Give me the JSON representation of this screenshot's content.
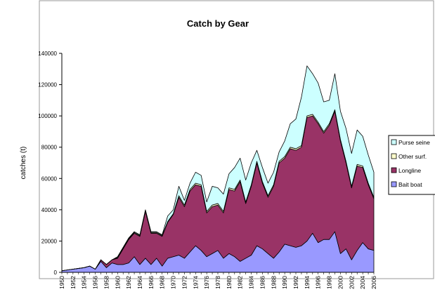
{
  "chart_data": {
    "type": "stacked_area",
    "title": "Catch by Gear",
    "y_label": "catches (t)",
    "categories": [
      "1950",
      null,
      "1952",
      null,
      "1954",
      null,
      "1956",
      null,
      "1958",
      null,
      "1960",
      null,
      "1962",
      null,
      "1964",
      null,
      "1966",
      null,
      "1968",
      null,
      "1970",
      null,
      "1972",
      null,
      "1974",
      null,
      "1976",
      null,
      "1978",
      null,
      "1980",
      null,
      "1982",
      null,
      "1984",
      null,
      "1986",
      null,
      "1988",
      null,
      "1990",
      null,
      "1992",
      null,
      "1994",
      null,
      "1996",
      null,
      "1998",
      null,
      "2000",
      null,
      "2002",
      null,
      "2004",
      null,
      "2006"
    ],
    "series": [
      {
        "name": "Bait boat",
        "color": "#9999ff",
        "values": [
          1000,
          1500,
          2000,
          2500,
          3000,
          4000,
          2000,
          7000,
          3000,
          6000,
          5000,
          5000,
          6000,
          10000,
          5000,
          9000,
          5000,
          9000,
          4000,
          9000,
          10000,
          11000,
          9000,
          13000,
          17000,
          14000,
          10000,
          12000,
          14000,
          9000,
          12000,
          10000,
          7000,
          9000,
          11000,
          17000,
          15000,
          12000,
          9000,
          13000,
          18000,
          17000,
          16000,
          17000,
          20000,
          25000,
          19000,
          21000,
          21000,
          26000,
          12000,
          15000,
          8000,
          14000,
          19000,
          15000,
          14000
        ]
      },
      {
        "name": "Longline",
        "color": "#993366",
        "values": [
          0,
          0,
          0,
          0,
          0,
          0,
          0,
          1000,
          2000,
          2000,
          4000,
          10000,
          15000,
          15000,
          18000,
          30000,
          20000,
          16000,
          19000,
          23000,
          27000,
          37000,
          33000,
          39000,
          39000,
          41000,
          28000,
          30000,
          29000,
          29000,
          41000,
          42000,
          51000,
          35000,
          44000,
          53000,
          42000,
          36000,
          46000,
          57000,
          55000,
          62000,
          62000,
          63000,
          79000,
          75000,
          76000,
          68000,
          73000,
          77000,
          72000,
          55000,
          46000,
          54000,
          48000,
          41000,
          33000
        ]
      },
      {
        "name": "Other surf.",
        "color": "#ffffcc",
        "values": [
          0,
          0,
          0,
          0,
          0,
          0,
          0,
          0,
          0,
          0,
          500,
          500,
          500,
          500,
          500,
          500,
          500,
          500,
          500,
          500,
          500,
          1000,
          1000,
          1000,
          1000,
          1000,
          1000,
          1000,
          1000,
          1000,
          1000,
          1000,
          1000,
          1000,
          1000,
          1000,
          1000,
          1000,
          1000,
          1000,
          1000,
          1000,
          1000,
          1000,
          1000,
          1000,
          1000,
          1000,
          1000,
          1000,
          1000,
          1000,
          1000,
          1000,
          1000,
          1000,
          1000
        ]
      },
      {
        "name": "Purse seine",
        "color": "#ccffff",
        "values": [
          0,
          0,
          0,
          0,
          0,
          0,
          0,
          0,
          0,
          0,
          500,
          500,
          500,
          500,
          500,
          500,
          500,
          500,
          500,
          3500,
          2500,
          6000,
          3000,
          4000,
          7000,
          6000,
          6000,
          12000,
          10000,
          11000,
          9000,
          14000,
          14000,
          14000,
          14000,
          7000,
          9000,
          8000,
          8000,
          6000,
          10000,
          15000,
          19000,
          31000,
          32000,
          26000,
          25000,
          19000,
          15000,
          23000,
          18000,
          21000,
          21000,
          22000,
          19000,
          18000,
          16000
        ]
      }
    ],
    "ylim": [
      0,
      140000
    ],
    "yticks": [
      0,
      20000,
      40000,
      60000,
      80000,
      100000,
      120000,
      140000
    ],
    "legend": "right"
  }
}
